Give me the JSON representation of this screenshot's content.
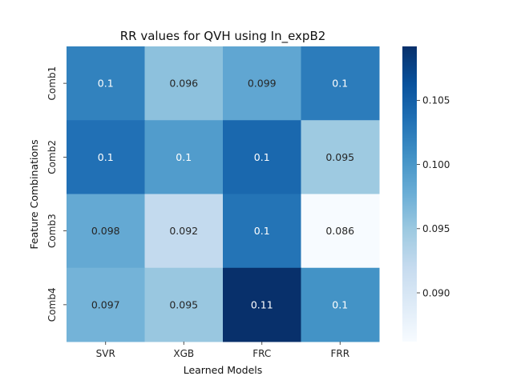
{
  "chart_data": {
    "type": "heatmap",
    "title": "RR values for QVH using In_expB2",
    "xlabel": "Learned Models",
    "ylabel": "Feature Combinations",
    "x_categories": [
      "SVR",
      "XGB",
      "FRC",
      "FRR"
    ],
    "y_categories": [
      "Comb1",
      "Comb2",
      "Comb3",
      "Comb4"
    ],
    "values": [
      [
        0.102,
        0.0958,
        0.0985,
        0.1025
      ],
      [
        0.1035,
        0.0995,
        0.1043,
        0.0948
      ],
      [
        0.0982,
        0.0922,
        0.1032,
        0.0862
      ],
      [
        0.0972,
        0.0951,
        0.1092,
        0.1005
      ]
    ],
    "annotations": [
      [
        "0.1",
        "0.096",
        "0.099",
        "0.1"
      ],
      [
        "0.1",
        "0.1",
        "0.1",
        "0.095"
      ],
      [
        "0.098",
        "0.092",
        "0.1",
        "0.086"
      ],
      [
        "0.097",
        "0.095",
        "0.11",
        "0.1"
      ]
    ],
    "colorbar": {
      "min": 0.0862,
      "max": 0.1092,
      "ticks": [
        0.09,
        0.095,
        0.1,
        0.105
      ],
      "tick_labels": [
        "0.090",
        "0.095",
        "0.100",
        "0.105"
      ]
    },
    "colormap": "Blues",
    "colormap_stops": [
      "#f7fbff",
      "#deebf7",
      "#c6dbef",
      "#9ecae1",
      "#6baed6",
      "#4292c6",
      "#2171b5",
      "#08519c",
      "#08306b"
    ],
    "text_colors": {
      "light": "#ffffff",
      "dark": "#262626"
    }
  }
}
